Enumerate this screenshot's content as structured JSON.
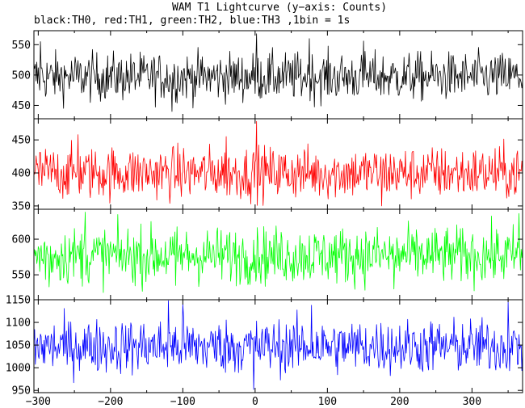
{
  "chart_data": {
    "type": "line",
    "title": "WAM T1 Lightcurve (y−axis: Counts)",
    "subtitle": "black:TH0, red:TH1, green:TH2, blue:TH3 ,1bin = 1s",
    "x": {
      "range": [
        -306,
        370
      ],
      "ticks": [
        -300,
        -200,
        -100,
        0,
        100,
        200,
        300
      ],
      "tick_labels": [
        "−300",
        "−200",
        "−100",
        "0",
        "100",
        "200",
        "300"
      ],
      "bin_seconds": 1
    },
    "panels": [
      {
        "series": "TH0",
        "color": "#000000",
        "ylim": [
          428,
          573
        ],
        "yticks": [
          450,
          500,
          550
        ],
        "mean": 497,
        "spread": 20,
        "peaks": [
          {
            "x": 2,
            "y": 568
          },
          {
            "x": -297,
            "y": 555
          },
          {
            "x": 75,
            "y": 560
          },
          {
            "x": 150,
            "y": 556
          },
          {
            "x": -115,
            "y": 440
          }
        ]
      },
      {
        "series": "TH1",
        "color": "#ff0000",
        "ylim": [
          345,
          482
        ],
        "yticks": [
          350,
          400,
          450
        ],
        "mean": 400,
        "spread": 20,
        "peaks": [
          {
            "x": 2,
            "y": 478
          },
          {
            "x": -245,
            "y": 458
          },
          {
            "x": 175,
            "y": 350
          },
          {
            "x": -40,
            "y": 455
          }
        ]
      },
      {
        "series": "TH2",
        "color": "#00ff00",
        "ylim": [
          515,
          642
        ],
        "yticks": [
          550,
          600
        ],
        "mean": 577,
        "spread": 20,
        "peaks": [
          {
            "x": -235,
            "y": 638
          },
          {
            "x": -285,
            "y": 533
          },
          {
            "x": 192,
            "y": 530
          },
          {
            "x": -110,
            "y": 535
          },
          {
            "x": 365,
            "y": 636
          }
        ]
      },
      {
        "series": "TH3",
        "color": "#0000ff",
        "ylim": [
          945,
          1150
        ],
        "yticks": [
          950,
          1000,
          1050,
          1100,
          1150
        ],
        "mean": 1047,
        "spread": 30,
        "peaks": [
          {
            "x": -120,
            "y": 1148
          },
          {
            "x": -100,
            "y": 1140
          },
          {
            "x": 78,
            "y": 1138
          },
          {
            "x": -2,
            "y": 952
          },
          {
            "x": 350,
            "y": 1145
          }
        ]
      }
    ]
  }
}
